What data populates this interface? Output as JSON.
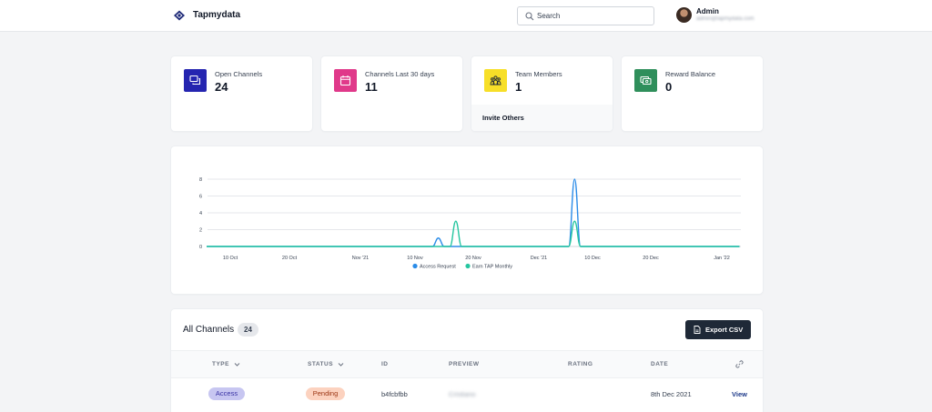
{
  "header": {
    "brand": "Tapmydata",
    "search_placeholder": "Search",
    "user_name": "Admin",
    "user_email": "admin@tapmydata.com"
  },
  "stats": [
    {
      "label": "Open Channels",
      "value": "24",
      "icon": "chat-icon",
      "color": "#2525b0"
    },
    {
      "label": "Channels Last 30 days",
      "value": "11",
      "icon": "calendar-icon",
      "color": "#e0398a"
    },
    {
      "label": "Team Members",
      "value": "1",
      "icon": "team-icon",
      "color": "#f7df28",
      "footer": "Invite Others"
    },
    {
      "label": "Reward Balance",
      "value": "0",
      "icon": "money-icon",
      "color": "#2f8f5b"
    }
  ],
  "chart_data": {
    "type": "line",
    "x_ticks": [
      "10 Oct",
      "20 Oct",
      "Nov '21",
      "10 Nov",
      "20 Nov",
      "Dec '21",
      "10 Dec",
      "20 Dec",
      "Jan '22"
    ],
    "yticks": [
      0,
      2,
      4,
      6,
      8
    ],
    "ylim": [
      0,
      8
    ],
    "series": [
      {
        "name": "Access Request",
        "color": "#2b8ce8",
        "points": [
          [
            "2021-10-06",
            0
          ],
          [
            "2021-11-13",
            0
          ],
          [
            "2021-11-14",
            1
          ],
          [
            "2021-11-15",
            0
          ],
          [
            "2021-12-06",
            0
          ],
          [
            "2021-12-07",
            8
          ],
          [
            "2021-12-08",
            0
          ],
          [
            "2022-01-04",
            0
          ]
        ]
      },
      {
        "name": "Earn TAP Monthly",
        "color": "#26c6a0",
        "points": [
          [
            "2021-10-06",
            0
          ],
          [
            "2021-11-16",
            0
          ],
          [
            "2021-11-17",
            3
          ],
          [
            "2021-11-18",
            0
          ],
          [
            "2021-12-06",
            0
          ],
          [
            "2021-12-07",
            3
          ],
          [
            "2021-12-08",
            0
          ],
          [
            "2022-01-04",
            0
          ]
        ]
      }
    ],
    "legend": "bottom-center",
    "grid": true
  },
  "channels": {
    "title": "All Channels",
    "count": "24",
    "export_label": "Export CSV",
    "columns": {
      "type": "TYPE",
      "status": "STATUS",
      "id": "ID",
      "preview": "PREVIEW",
      "rating": "RATING",
      "date": "DATE"
    },
    "rows": [
      {
        "type": "Access",
        "status": "Pending",
        "id": "b4fcbfbb",
        "preview": "Cristiano",
        "rating": "",
        "date": "8th Dec 2021",
        "action": "View"
      }
    ],
    "colors": {
      "type_badge": "#c7c6f1",
      "status_badge": "#fcd2bf",
      "link": "#1e3a8a"
    }
  }
}
